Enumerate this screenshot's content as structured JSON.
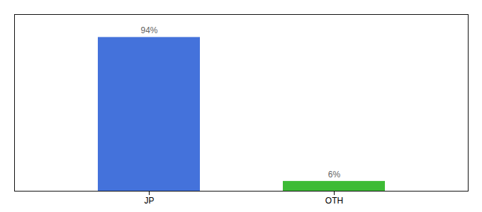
{
  "chart_data": {
    "type": "bar",
    "categories": [
      "JP",
      "OTH"
    ],
    "values": [
      94,
      6
    ],
    "value_labels": [
      "94%",
      "6%"
    ],
    "colors": [
      "#4472db",
      "#3dbb35"
    ],
    "ylim": [
      0,
      108
    ],
    "data_labels": true,
    "tick_labels": "x"
  }
}
